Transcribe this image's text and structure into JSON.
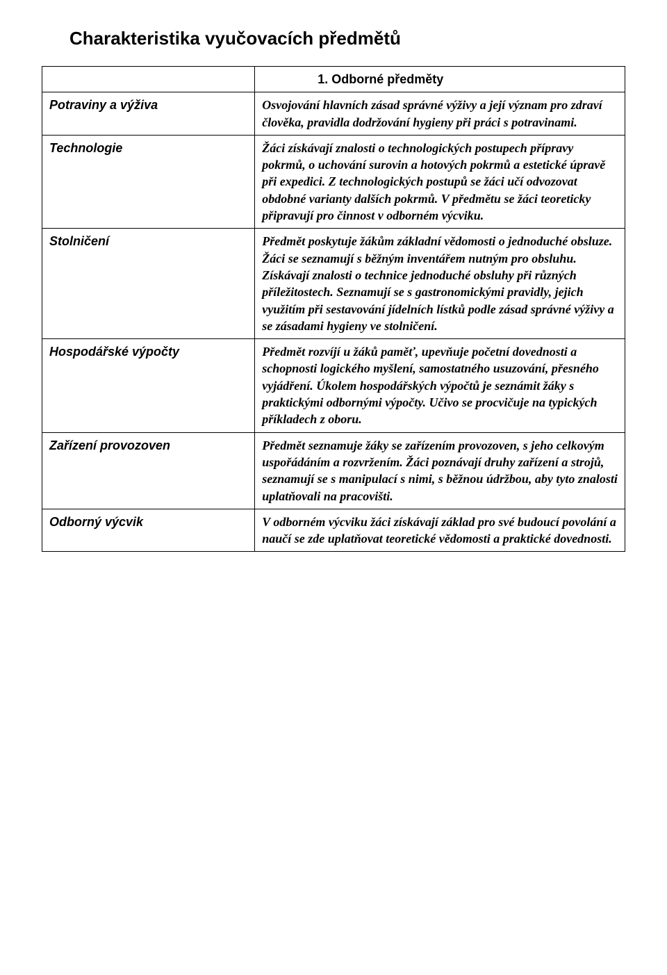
{
  "page": {
    "title": "Charakteristika vyučovacích předmětů",
    "section_header": "1. Odborné předměty"
  },
  "rows": [
    {
      "label": "Potraviny a výživa",
      "desc": "Osvojování hlavních zásad správné výživy a její význam pro zdraví člověka, pravidla dodržování hygieny při práci s potravinami."
    },
    {
      "label": "Technologie",
      "desc": "Žáci získávají znalosti o technologických postupech přípravy pokrmů, o uchování surovin a hotových pokrmů a estetické úpravě při expedici. Z technologických postupů se žáci učí odvozovat obdobné varianty dalších pokrmů. V předmětu se žáci teoreticky připravují pro činnost v odborném výcviku."
    },
    {
      "label": "Stolničení",
      "desc": "Předmět poskytuje žákům základní vědomosti o jednoduché obsluze. Žáci se seznamují s běžným inventářem nutným pro obsluhu. Získávají znalosti o technice jednoduché obsluhy při různých příležitostech. Seznamují se s gastronomickými pravidly, jejich využitím při sestavování jídelních lístků podle zásad správné výživy a se zásadami hygieny ve stolničení."
    },
    {
      "label": "Hospodářské výpočty",
      "desc": "Předmět rozvíjí u žáků paměť, upevňuje početní dovednosti a schopnosti logického myšlení, samostatného usuzování, přesného vyjádření. Úkolem hospodářských výpočtů je seznámit žáky s praktickými odbornými výpočty. Učivo se procvičuje na typických příkladech z oboru."
    },
    {
      "label": "Zařízení provozoven",
      "desc": "Předmět seznamuje žáky se zařízením provozoven, s jeho celkovým uspořádáním a rozvržením. Žáci poznávají druhy zařízení a strojů, seznamují se s manipulací s nimi, s běžnou údržbou, aby tyto znalosti uplatňovali na pracovišti."
    },
    {
      "label": "Odborný výcvik",
      "desc": "V odborném výcviku žáci získávají základ pro své budoucí povolání a naučí se zde uplatňovat  teoretické vědomosti a praktické dovednosti."
    }
  ]
}
